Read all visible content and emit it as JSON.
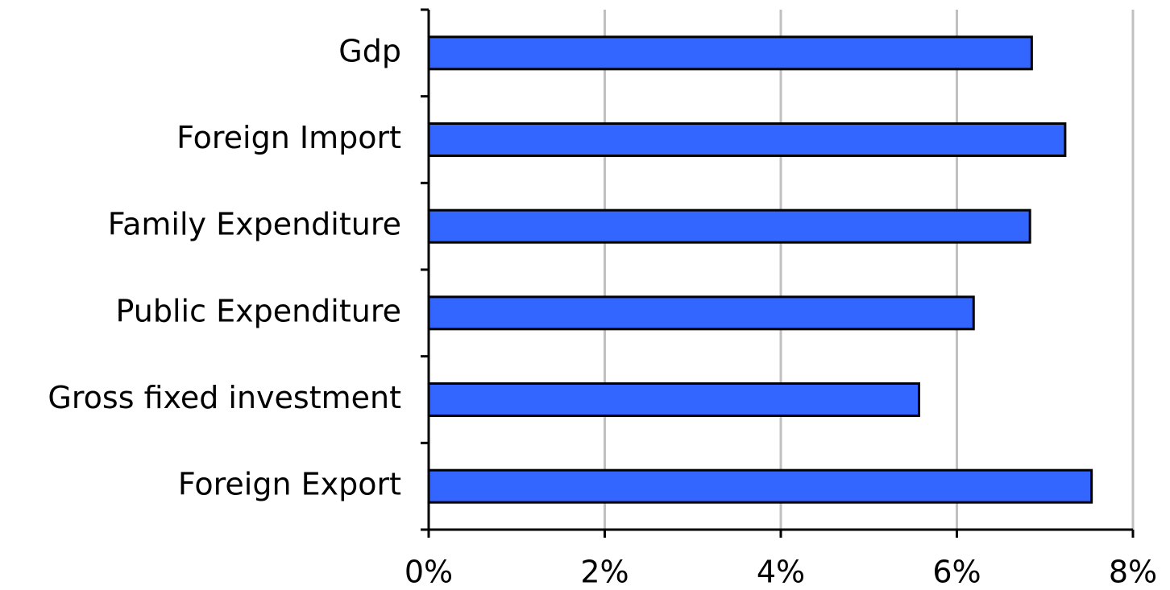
{
  "chart_data": {
    "type": "bar",
    "orientation": "horizontal",
    "categories": [
      "Gdp",
      "Foreign Import",
      "Family Expenditure",
      "Public Expenditure",
      "Gross fixed investment",
      "Foreign Export"
    ],
    "values": [
      6.85,
      7.23,
      6.83,
      6.19,
      5.57,
      7.53
    ],
    "color": "#3366ff",
    "xlim": [
      0,
      8
    ],
    "xticks": [
      {
        "value": 0,
        "label": "0%"
      },
      {
        "value": 2,
        "label": "2%"
      },
      {
        "value": 4,
        "label": "4%"
      },
      {
        "value": 6,
        "label": "6%"
      },
      {
        "value": 8,
        "label": "8%"
      }
    ],
    "grid": true
  }
}
